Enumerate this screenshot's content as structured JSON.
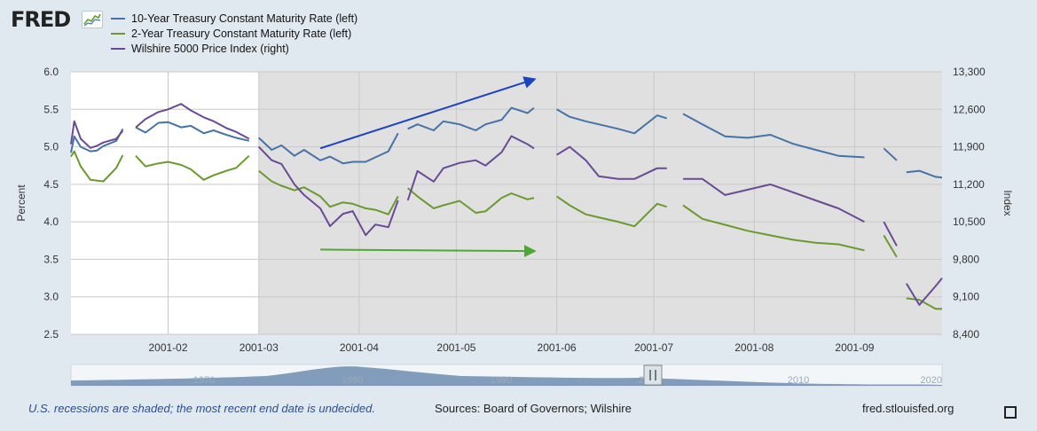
{
  "logo": {
    "text": "FRED",
    "icon": "fred-chart-icon"
  },
  "footer": {
    "note": "U.S. recessions are shaded; the most recent end date is undecided.",
    "sources": "Sources: Board of Governors; Wilshire",
    "site": "fred.stlouisfed.org"
  },
  "chart_data": {
    "type": "line",
    "title": "",
    "recession": {
      "start": "2001-03-01",
      "end": "2001-11-30"
    },
    "x_range": [
      "2001-01-02",
      "2001-09-28"
    ],
    "x_ticks": [
      "2001-02",
      "2001-03",
      "2001-04",
      "2001-05",
      "2001-06",
      "2001-07",
      "2001-08",
      "2001-09"
    ],
    "y_left": {
      "label": "Percent",
      "range": [
        2.5,
        6.0
      ],
      "ticks": [
        "2.5",
        "3.0",
        "3.5",
        "4.0",
        "4.5",
        "5.0",
        "5.5",
        "6.0"
      ]
    },
    "y_right": {
      "label": "Index",
      "range": [
        8400,
        13300
      ],
      "ticks": [
        "8,400",
        "9,100",
        "9,800",
        "10,500",
        "11,200",
        "11,900",
        "12,600",
        "13,300"
      ]
    },
    "grid": true,
    "legend_placement": "top-left",
    "series": [
      {
        "name": "10-Year Treasury Constant Maturity Rate (left)",
        "axis": "left",
        "color": "#4572a7",
        "segments": [
          [
            [
              "2001-01-02",
              4.92
            ],
            [
              "2001-01-03",
              5.14
            ],
            [
              "2001-01-05",
              5.0
            ],
            [
              "2001-01-08",
              4.94
            ],
            [
              "2001-01-10",
              4.95
            ],
            [
              "2001-01-12",
              5.01
            ],
            [
              "2001-01-16",
              5.08
            ],
            [
              "2001-01-18",
              5.24
            ]
          ],
          [
            [
              "2001-01-22",
              5.26
            ],
            [
              "2001-01-25",
              5.19
            ],
            [
              "2001-01-29",
              5.32
            ],
            [
              "2001-02-01",
              5.33
            ],
            [
              "2001-02-05",
              5.26
            ],
            [
              "2001-02-08",
              5.28
            ],
            [
              "2001-02-12",
              5.18
            ],
            [
              "2001-02-15",
              5.22
            ],
            [
              "2001-02-19",
              5.16
            ],
            [
              "2001-02-22",
              5.12
            ],
            [
              "2001-02-26",
              5.08
            ]
          ],
          [
            [
              "2001-03-01",
              5.12
            ],
            [
              "2001-03-05",
              4.96
            ],
            [
              "2001-03-08",
              5.02
            ],
            [
              "2001-03-12",
              4.88
            ],
            [
              "2001-03-15",
              4.96
            ],
            [
              "2001-03-20",
              4.82
            ],
            [
              "2001-03-23",
              4.87
            ],
            [
              "2001-03-27",
              4.78
            ],
            [
              "2001-03-30",
              4.8
            ],
            [
              "2001-04-03",
              4.8
            ],
            [
              "2001-04-06",
              4.86
            ],
            [
              "2001-04-10",
              4.94
            ],
            [
              "2001-04-13",
              5.18
            ]
          ],
          [
            [
              "2001-04-16",
              5.24
            ],
            [
              "2001-04-19",
              5.3
            ],
            [
              "2001-04-24",
              5.22
            ],
            [
              "2001-04-27",
              5.34
            ],
            [
              "2001-05-02",
              5.3
            ],
            [
              "2001-05-07",
              5.22
            ],
            [
              "2001-05-10",
              5.3
            ],
            [
              "2001-05-15",
              5.36
            ],
            [
              "2001-05-18",
              5.52
            ],
            [
              "2001-05-23",
              5.45
            ],
            [
              "2001-05-25",
              5.52
            ]
          ],
          [
            [
              "2001-06-01",
              5.5
            ],
            [
              "2001-06-05",
              5.4
            ],
            [
              "2001-06-10",
              5.34
            ],
            [
              "2001-06-14",
              5.3
            ],
            [
              "2001-06-20",
              5.24
            ],
            [
              "2001-06-25",
              5.18
            ],
            [
              "2001-07-02",
              5.42
            ],
            [
              "2001-07-05",
              5.38
            ]
          ],
          [
            [
              "2001-07-10",
              5.44
            ],
            [
              "2001-07-16",
              5.3
            ],
            [
              "2001-07-23",
              5.14
            ],
            [
              "2001-07-30",
              5.12
            ],
            [
              "2001-08-06",
              5.16
            ],
            [
              "2001-08-13",
              5.04
            ],
            [
              "2001-08-20",
              4.96
            ],
            [
              "2001-08-27",
              4.88
            ],
            [
              "2001-09-04",
              4.86
            ]
          ],
          [
            [
              "2001-09-10",
              4.98
            ],
            [
              "2001-09-14",
              4.82
            ]
          ],
          [
            [
              "2001-09-17",
              4.66
            ],
            [
              "2001-09-21",
              4.68
            ],
            [
              "2001-09-26",
              4.6
            ],
            [
              "2001-09-28",
              4.59
            ]
          ]
        ]
      },
      {
        "name": "2-Year Treasury Constant Maturity Rate (left)",
        "axis": "left",
        "color": "#6a9a2e",
        "segments": [
          [
            [
              "2001-01-02",
              4.87
            ],
            [
              "2001-01-03",
              4.94
            ],
            [
              "2001-01-05",
              4.74
            ],
            [
              "2001-01-08",
              4.56
            ],
            [
              "2001-01-10",
              4.55
            ],
            [
              "2001-01-12",
              4.54
            ],
            [
              "2001-01-16",
              4.72
            ],
            [
              "2001-01-18",
              4.89
            ]
          ],
          [
            [
              "2001-01-22",
              4.88
            ],
            [
              "2001-01-25",
              4.74
            ],
            [
              "2001-01-29",
              4.78
            ],
            [
              "2001-02-01",
              4.8
            ],
            [
              "2001-02-05",
              4.76
            ],
            [
              "2001-02-08",
              4.7
            ],
            [
              "2001-02-12",
              4.56
            ],
            [
              "2001-02-15",
              4.62
            ],
            [
              "2001-02-19",
              4.68
            ],
            [
              "2001-02-22",
              4.72
            ],
            [
              "2001-02-26",
              4.88
            ]
          ],
          [
            [
              "2001-03-01",
              4.68
            ],
            [
              "2001-03-05",
              4.54
            ],
            [
              "2001-03-08",
              4.48
            ],
            [
              "2001-03-12",
              4.42
            ],
            [
              "2001-03-15",
              4.46
            ],
            [
              "2001-03-20",
              4.34
            ],
            [
              "2001-03-23",
              4.2
            ],
            [
              "2001-03-27",
              4.26
            ],
            [
              "2001-03-30",
              4.24
            ],
            [
              "2001-04-03",
              4.18
            ],
            [
              "2001-04-06",
              4.16
            ],
            [
              "2001-04-10",
              4.1
            ],
            [
              "2001-04-13",
              4.34
            ]
          ],
          [
            [
              "2001-04-16",
              4.45
            ],
            [
              "2001-04-19",
              4.34
            ],
            [
              "2001-04-24",
              4.18
            ],
            [
              "2001-04-27",
              4.22
            ],
            [
              "2001-05-02",
              4.28
            ],
            [
              "2001-05-07",
              4.12
            ],
            [
              "2001-05-10",
              4.14
            ],
            [
              "2001-05-15",
              4.32
            ],
            [
              "2001-05-18",
              4.38
            ],
            [
              "2001-05-23",
              4.3
            ],
            [
              "2001-05-25",
              4.32
            ]
          ],
          [
            [
              "2001-06-01",
              4.34
            ],
            [
              "2001-06-05",
              4.22
            ],
            [
              "2001-06-10",
              4.1
            ],
            [
              "2001-06-14",
              4.06
            ],
            [
              "2001-06-20",
              4.0
            ],
            [
              "2001-06-25",
              3.94
            ],
            [
              "2001-07-02",
              4.24
            ],
            [
              "2001-07-05",
              4.2
            ]
          ],
          [
            [
              "2001-07-10",
              4.22
            ],
            [
              "2001-07-16",
              4.04
            ],
            [
              "2001-07-23",
              3.96
            ],
            [
              "2001-07-30",
              3.88
            ],
            [
              "2001-08-06",
              3.82
            ],
            [
              "2001-08-13",
              3.76
            ],
            [
              "2001-08-20",
              3.72
            ],
            [
              "2001-08-27",
              3.7
            ],
            [
              "2001-09-04",
              3.62
            ]
          ],
          [
            [
              "2001-09-10",
              3.82
            ],
            [
              "2001-09-14",
              3.53
            ]
          ],
          [
            [
              "2001-09-17",
              2.98
            ],
            [
              "2001-09-21",
              2.96
            ],
            [
              "2001-09-26",
              2.84
            ],
            [
              "2001-09-28",
              2.84
            ]
          ]
        ]
      },
      {
        "name": "Wilshire 5000 Price Index (right)",
        "axis": "right",
        "color": "#6a4a96",
        "segments": [
          [
            [
              "2001-01-02",
              11950
            ],
            [
              "2001-01-03",
              12380
            ],
            [
              "2001-01-05",
              12050
            ],
            [
              "2001-01-08",
              11880
            ],
            [
              "2001-01-10",
              11920
            ],
            [
              "2001-01-12",
              11980
            ],
            [
              "2001-01-16",
              12050
            ],
            [
              "2001-01-18",
              12200
            ]
          ],
          [
            [
              "2001-01-22",
              12260
            ],
            [
              "2001-01-25",
              12420
            ],
            [
              "2001-01-29",
              12550
            ],
            [
              "2001-02-01",
              12600
            ],
            [
              "2001-02-05",
              12700
            ],
            [
              "2001-02-08",
              12580
            ],
            [
              "2001-02-12",
              12450
            ],
            [
              "2001-02-15",
              12380
            ],
            [
              "2001-02-19",
              12250
            ],
            [
              "2001-02-22",
              12180
            ],
            [
              "2001-02-26",
              12050
            ]
          ],
          [
            [
              "2001-03-01",
              11900
            ],
            [
              "2001-03-05",
              11650
            ],
            [
              "2001-03-08",
              11580
            ],
            [
              "2001-03-12",
              11200
            ],
            [
              "2001-03-15",
              11000
            ],
            [
              "2001-03-20",
              10750
            ],
            [
              "2001-03-23",
              10420
            ],
            [
              "2001-03-27",
              10650
            ],
            [
              "2001-03-30",
              10700
            ],
            [
              "2001-04-03",
              10250
            ],
            [
              "2001-04-06",
              10450
            ],
            [
              "2001-04-10",
              10400
            ],
            [
              "2001-04-13",
              10900
            ]
          ],
          [
            [
              "2001-04-16",
              10900
            ],
            [
              "2001-04-19",
              11450
            ],
            [
              "2001-04-24",
              11250
            ],
            [
              "2001-04-27",
              11500
            ],
            [
              "2001-05-02",
              11600
            ],
            [
              "2001-05-07",
              11650
            ],
            [
              "2001-05-10",
              11550
            ],
            [
              "2001-05-15",
              11800
            ],
            [
              "2001-05-18",
              12100
            ],
            [
              "2001-05-23",
              11950
            ],
            [
              "2001-05-25",
              11870
            ]
          ],
          [
            [
              "2001-06-01",
              11750
            ],
            [
              "2001-06-05",
              11900
            ],
            [
              "2001-06-10",
              11650
            ],
            [
              "2001-06-14",
              11350
            ],
            [
              "2001-06-20",
              11300
            ],
            [
              "2001-06-25",
              11300
            ],
            [
              "2001-07-02",
              11500
            ],
            [
              "2001-07-05",
              11500
            ]
          ],
          [
            [
              "2001-07-10",
              11300
            ],
            [
              "2001-07-16",
              11300
            ],
            [
              "2001-07-23",
              11000
            ],
            [
              "2001-07-30",
              11100
            ],
            [
              "2001-08-06",
              11200
            ],
            [
              "2001-08-13",
              11050
            ],
            [
              "2001-08-20",
              10900
            ],
            [
              "2001-08-27",
              10750
            ],
            [
              "2001-09-04",
              10500
            ]
          ],
          [
            [
              "2001-09-10",
              10500
            ],
            [
              "2001-09-14",
              10050
            ]
          ],
          [
            [
              "2001-09-17",
              9350
            ],
            [
              "2001-09-21",
              8950
            ],
            [
              "2001-09-26",
              9300
            ],
            [
              "2001-09-28",
              9450
            ]
          ]
        ]
      }
    ],
    "annotations": [
      {
        "type": "arrow",
        "color": "#1a44c2",
        "from": {
          "date": "2001-03-20",
          "left": 4.98
        },
        "to": {
          "date": "2001-05-25",
          "left": 5.9
        }
      },
      {
        "type": "arrow",
        "color": "#4ea832",
        "from": {
          "date": "2001-03-20",
          "left": 3.63
        },
        "to": {
          "date": "2001-05-25",
          "left": 3.61
        }
      }
    ]
  },
  "navigator": {
    "labels": [
      "1970",
      "1980",
      "1990",
      "2000",
      "2010",
      "2020"
    ],
    "handle_icon": "range-handle-icon"
  }
}
